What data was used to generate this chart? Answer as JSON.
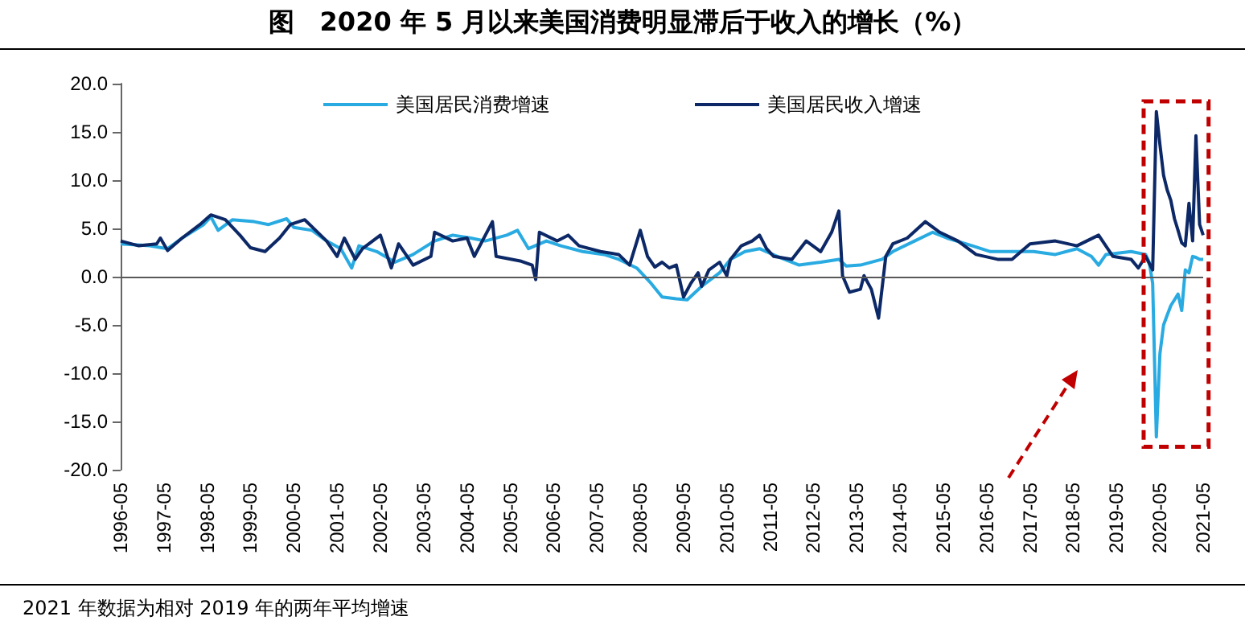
{
  "chart_data": {
    "type": "line",
    "title": "图　2020 年 5 月以来美国消费明显滞后于收入的增长（%）",
    "annotations": [
      "2021 年数据为相对 2019 年的两年平均增速"
    ],
    "xlim": [
      "1996-05",
      "2021-05"
    ],
    "xticks": [
      "1996-05",
      "1997-05",
      "1998-05",
      "1999-05",
      "2000-05",
      "2001-05",
      "2002-05",
      "2003-05",
      "2004-05",
      "2005-05",
      "2006-05",
      "2007-05",
      "2008-05",
      "2009-05",
      "2010-05",
      "2011-05",
      "2012-05",
      "2013-05",
      "2014-05",
      "2015-05",
      "2016-05",
      "2017-05",
      "2018-05",
      "2019-05",
      "2020-05",
      "2021-05"
    ],
    "ylim": [
      -20,
      20
    ],
    "yticks": [
      {
        "value": -20,
        "label": "-20.0"
      },
      {
        "value": -15,
        "label": "-15.0"
      },
      {
        "value": -10,
        "label": "-10.0"
      },
      {
        "value": -5,
        "label": "-5.0"
      },
      {
        "value": 0,
        "label": "0.0"
      },
      {
        "value": 5,
        "label": "5.0"
      },
      {
        "value": 10,
        "label": "10.0"
      },
      {
        "value": 15,
        "label": "15.0"
      },
      {
        "value": 20,
        "label": "20.0"
      }
    ],
    "legend": "top",
    "ref_lines": [
      {
        "axis": "y",
        "value": 0,
        "color": "#595959"
      }
    ],
    "marker": "none",
    "line_style": "solid",
    "series": [
      {
        "name": "美国居民消费增速",
        "color": "#29abe2",
        "x": [
          "1996-05",
          "1997-01",
          "1997-06",
          "1997-10",
          "1998-04",
          "1998-06",
          "1998-08",
          "1998-12",
          "1999-06",
          "1999-10",
          "2000-03",
          "2000-05",
          "2000-10",
          "2001-02",
          "2001-06",
          "2001-09",
          "2001-11",
          "2002-04",
          "2002-09",
          "2003-02",
          "2003-08",
          "2004-01",
          "2004-06",
          "2004-10",
          "2005-04",
          "2005-07",
          "2005-10",
          "2006-03",
          "2006-07",
          "2007-01",
          "2007-07",
          "2007-11",
          "2008-04",
          "2008-08",
          "2008-11",
          "2009-03",
          "2009-06",
          "2009-10",
          "2010-03",
          "2010-06",
          "2010-10",
          "2011-02",
          "2011-07",
          "2012-01",
          "2012-07",
          "2012-12",
          "2013-02",
          "2013-06",
          "2013-12",
          "2014-03",
          "2014-09",
          "2015-02",
          "2015-06",
          "2016-01",
          "2016-06",
          "2016-12",
          "2017-06",
          "2017-12",
          "2018-06",
          "2018-10",
          "2018-12",
          "2019-02",
          "2019-09",
          "2020-01",
          "2020-02",
          "2020-03",
          "2020-04",
          "2020-05",
          "2020-06",
          "2020-07",
          "2020-08",
          "2020-09",
          "2020-10",
          "2020-11",
          "2020-12",
          "2021-01",
          "2021-02",
          "2021-03",
          "2021-04",
          "2021-05"
        ],
        "values": [
          3.4,
          3.2,
          2.9,
          4.0,
          5.4,
          6.2,
          4.8,
          5.9,
          5.7,
          5.4,
          6.0,
          5.1,
          4.8,
          3.7,
          2.9,
          0.9,
          3.2,
          2.6,
          1.5,
          2.3,
          3.7,
          4.3,
          4.0,
          3.7,
          4.3,
          4.8,
          2.9,
          3.7,
          3.2,
          2.6,
          2.3,
          1.8,
          0.9,
          -0.7,
          -2.1,
          -2.3,
          -2.4,
          -1.0,
          0.4,
          1.8,
          2.6,
          2.9,
          2.1,
          1.2,
          1.5,
          1.8,
          1.1,
          1.2,
          1.8,
          2.6,
          3.7,
          4.6,
          4.0,
          3.2,
          2.6,
          2.6,
          2.6,
          2.3,
          2.9,
          2.1,
          1.2,
          2.3,
          2.6,
          2.3,
          1.5,
          -0.7,
          -16.6,
          -8.0,
          -5.0,
          -4.0,
          -3.0,
          -2.4,
          -1.8,
          -3.5,
          0.7,
          0.4,
          2.1,
          2.0,
          1.8,
          1.8
        ]
      },
      {
        "name": "美国居民收入增速",
        "color": "#0c2866",
        "x": [
          "1996-05",
          "1996-10",
          "1997-03",
          "1997-04",
          "1997-06",
          "1997-10",
          "1998-03",
          "1998-06",
          "1998-10",
          "1999-02",
          "1999-05",
          "1999-09",
          "2000-01",
          "2000-04",
          "2000-08",
          "2000-11",
          "2001-02",
          "2001-05",
          "2001-07",
          "2001-10",
          "2001-12",
          "2002-05",
          "2002-08",
          "2002-10",
          "2003-02",
          "2003-07",
          "2003-08",
          "2004-01",
          "2004-05",
          "2004-07",
          "2004-12",
          "2005-01",
          "2005-08",
          "2005-11",
          "2005-12",
          "2006-01",
          "2006-06",
          "2006-09",
          "2006-12",
          "2007-06",
          "2007-11",
          "2008-02",
          "2008-05",
          "2008-07",
          "2008-09",
          "2008-11",
          "2009-01",
          "2009-03",
          "2009-05",
          "2009-07",
          "2009-09",
          "2009-10",
          "2009-12",
          "2010-03",
          "2010-05",
          "2010-06",
          "2010-09",
          "2010-12",
          "2011-02",
          "2011-04",
          "2011-06",
          "2011-11",
          "2012-03",
          "2012-07",
          "2012-10",
          "2012-12",
          "2013-01",
          "2013-03",
          "2013-06",
          "2013-07",
          "2013-09",
          "2013-11",
          "2014-01",
          "2014-03",
          "2014-07",
          "2014-12",
          "2015-04",
          "2015-09",
          "2016-02",
          "2016-08",
          "2016-12",
          "2017-05",
          "2017-12",
          "2018-06",
          "2018-12",
          "2019-04",
          "2019-09",
          "2019-11",
          "2020-01",
          "2020-03",
          "2020-04",
          "2020-05",
          "2020-06",
          "2020-07",
          "2020-08",
          "2020-09",
          "2020-10",
          "2020-11",
          "2020-12",
          "2021-01",
          "2021-02",
          "2021-03",
          "2021-04",
          "2021-05"
        ],
        "values": [
          3.7,
          3.2,
          3.4,
          4.0,
          2.7,
          4.0,
          5.4,
          6.4,
          5.9,
          4.3,
          3.0,
          2.6,
          4.0,
          5.4,
          5.9,
          4.8,
          3.7,
          2.1,
          4.0,
          1.8,
          2.9,
          4.3,
          0.9,
          3.4,
          1.2,
          2.1,
          4.6,
          3.7,
          4.0,
          2.1,
          5.7,
          2.1,
          1.6,
          1.2,
          -0.3,
          4.6,
          3.7,
          4.3,
          3.2,
          2.6,
          2.3,
          1.2,
          4.8,
          2.1,
          1.0,
          1.5,
          0.9,
          1.2,
          -2.1,
          -0.7,
          0.4,
          -1.0,
          0.7,
          1.5,
          0.1,
          1.8,
          3.2,
          3.7,
          4.3,
          2.9,
          2.1,
          1.8,
          3.7,
          2.6,
          4.6,
          6.8,
          0.1,
          -1.6,
          -1.3,
          0.1,
          -1.3,
          -4.3,
          2.1,
          3.4,
          4.0,
          5.7,
          4.6,
          3.7,
          2.3,
          1.8,
          1.8,
          3.4,
          3.7,
          3.2,
          4.3,
          2.1,
          1.8,
          0.9,
          2.1,
          0.7,
          17.1,
          13.7,
          10.5,
          9.0,
          7.9,
          6.0,
          4.8,
          3.5,
          3.2,
          7.6,
          3.7,
          14.6,
          5.4,
          4.3
        ]
      }
    ]
  }
}
